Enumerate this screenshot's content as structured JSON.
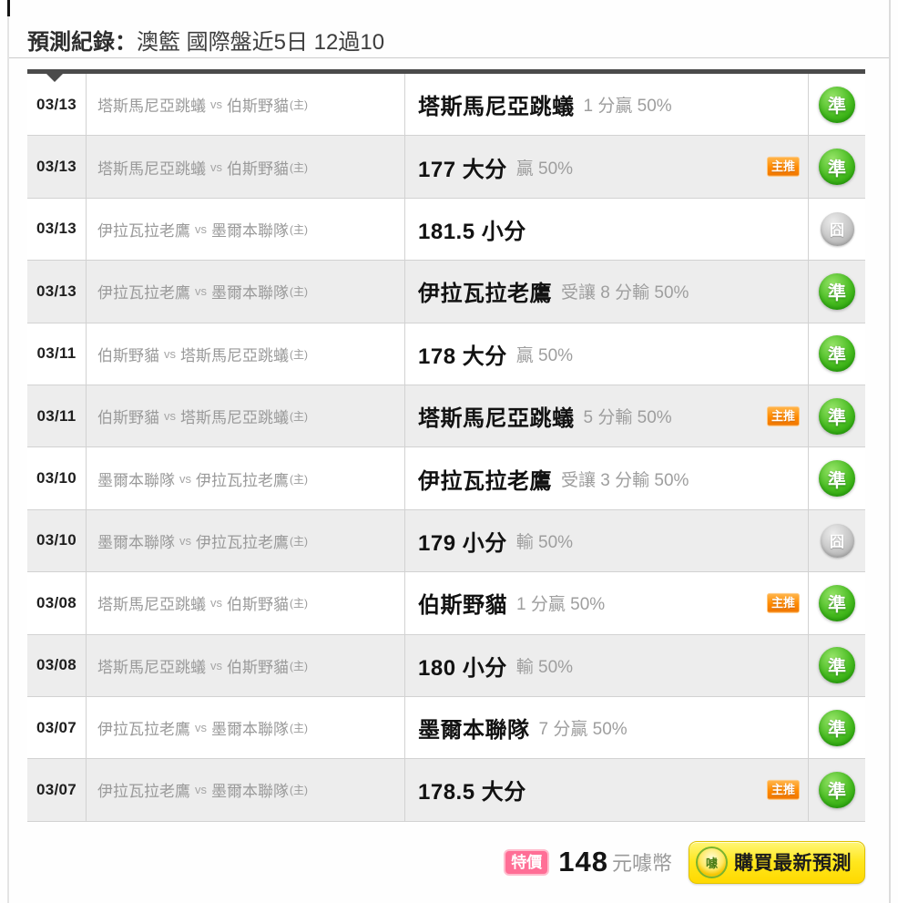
{
  "header": {
    "title_bold": "預測紀錄：",
    "title_rest": "澳籃 國際盤近5日 12過10"
  },
  "table": {
    "vs_label": "vs",
    "host_suffix": "(主)",
    "main_pick_badge_label": "主推",
    "status_hit_glyph": "準",
    "status_miss_glyph": "囧",
    "rows": [
      {
        "date": "03/13",
        "home": "塔斯馬尼亞跳蟻",
        "away": "伯斯野貓",
        "pick": "塔斯馬尼亞跳蟻",
        "result": "1 分贏 50%",
        "promoted": false,
        "status": "hit"
      },
      {
        "date": "03/13",
        "home": "塔斯馬尼亞跳蟻",
        "away": "伯斯野貓",
        "pick": "177 大分",
        "result": "贏 50%",
        "promoted": true,
        "status": "hit"
      },
      {
        "date": "03/13",
        "home": "伊拉瓦拉老鷹",
        "away": "墨爾本聯隊",
        "pick": "181.5 小分",
        "result": "",
        "promoted": false,
        "status": "miss"
      },
      {
        "date": "03/13",
        "home": "伊拉瓦拉老鷹",
        "away": "墨爾本聯隊",
        "pick": "伊拉瓦拉老鷹",
        "result": "受讓 8 分輸 50%",
        "promoted": false,
        "status": "hit"
      },
      {
        "date": "03/11",
        "home": "伯斯野貓",
        "away": "塔斯馬尼亞跳蟻",
        "pick": "178 大分",
        "result": "贏 50%",
        "promoted": false,
        "status": "hit"
      },
      {
        "date": "03/11",
        "home": "伯斯野貓",
        "away": "塔斯馬尼亞跳蟻",
        "pick": "塔斯馬尼亞跳蟻",
        "result": "5 分輸 50%",
        "promoted": true,
        "status": "hit"
      },
      {
        "date": "03/10",
        "home": "墨爾本聯隊",
        "away": "伊拉瓦拉老鷹",
        "pick": "伊拉瓦拉老鷹",
        "result": "受讓 3 分輸 50%",
        "promoted": false,
        "status": "hit"
      },
      {
        "date": "03/10",
        "home": "墨爾本聯隊",
        "away": "伊拉瓦拉老鷹",
        "pick": "179 小分",
        "result": "輸 50%",
        "promoted": false,
        "status": "miss"
      },
      {
        "date": "03/08",
        "home": "塔斯馬尼亞跳蟻",
        "away": "伯斯野貓",
        "pick": "伯斯野貓",
        "result": "1 分贏 50%",
        "promoted": true,
        "status": "hit"
      },
      {
        "date": "03/08",
        "home": "塔斯馬尼亞跳蟻",
        "away": "伯斯野貓",
        "pick": "180 小分",
        "result": "輸 50%",
        "promoted": false,
        "status": "hit"
      },
      {
        "date": "03/07",
        "home": "伊拉瓦拉老鷹",
        "away": "墨爾本聯隊",
        "pick": "墨爾本聯隊",
        "result": "7 分贏 50%",
        "promoted": false,
        "status": "hit"
      },
      {
        "date": "03/07",
        "home": "伊拉瓦拉老鷹",
        "away": "墨爾本聯隊",
        "pick": "178.5 大分",
        "result": "",
        "promoted": true,
        "status": "hit"
      }
    ]
  },
  "footer": {
    "special_badge_label": "特價",
    "price": "148",
    "currency_label": "元噱幣",
    "coin_icon_glyph": "噱",
    "buy_button_label": "購買最新預測"
  },
  "colors": {
    "hit_green": "#2fae0d",
    "miss_gray": "#bdbdbd",
    "promo_badge_orange": "#ff8a00",
    "special_badge_pink": "#ff6e96",
    "buy_button_yellow": "#ffe400",
    "table_border_dark": "#4b4b4b",
    "row_alt_gray": "#ededed"
  }
}
